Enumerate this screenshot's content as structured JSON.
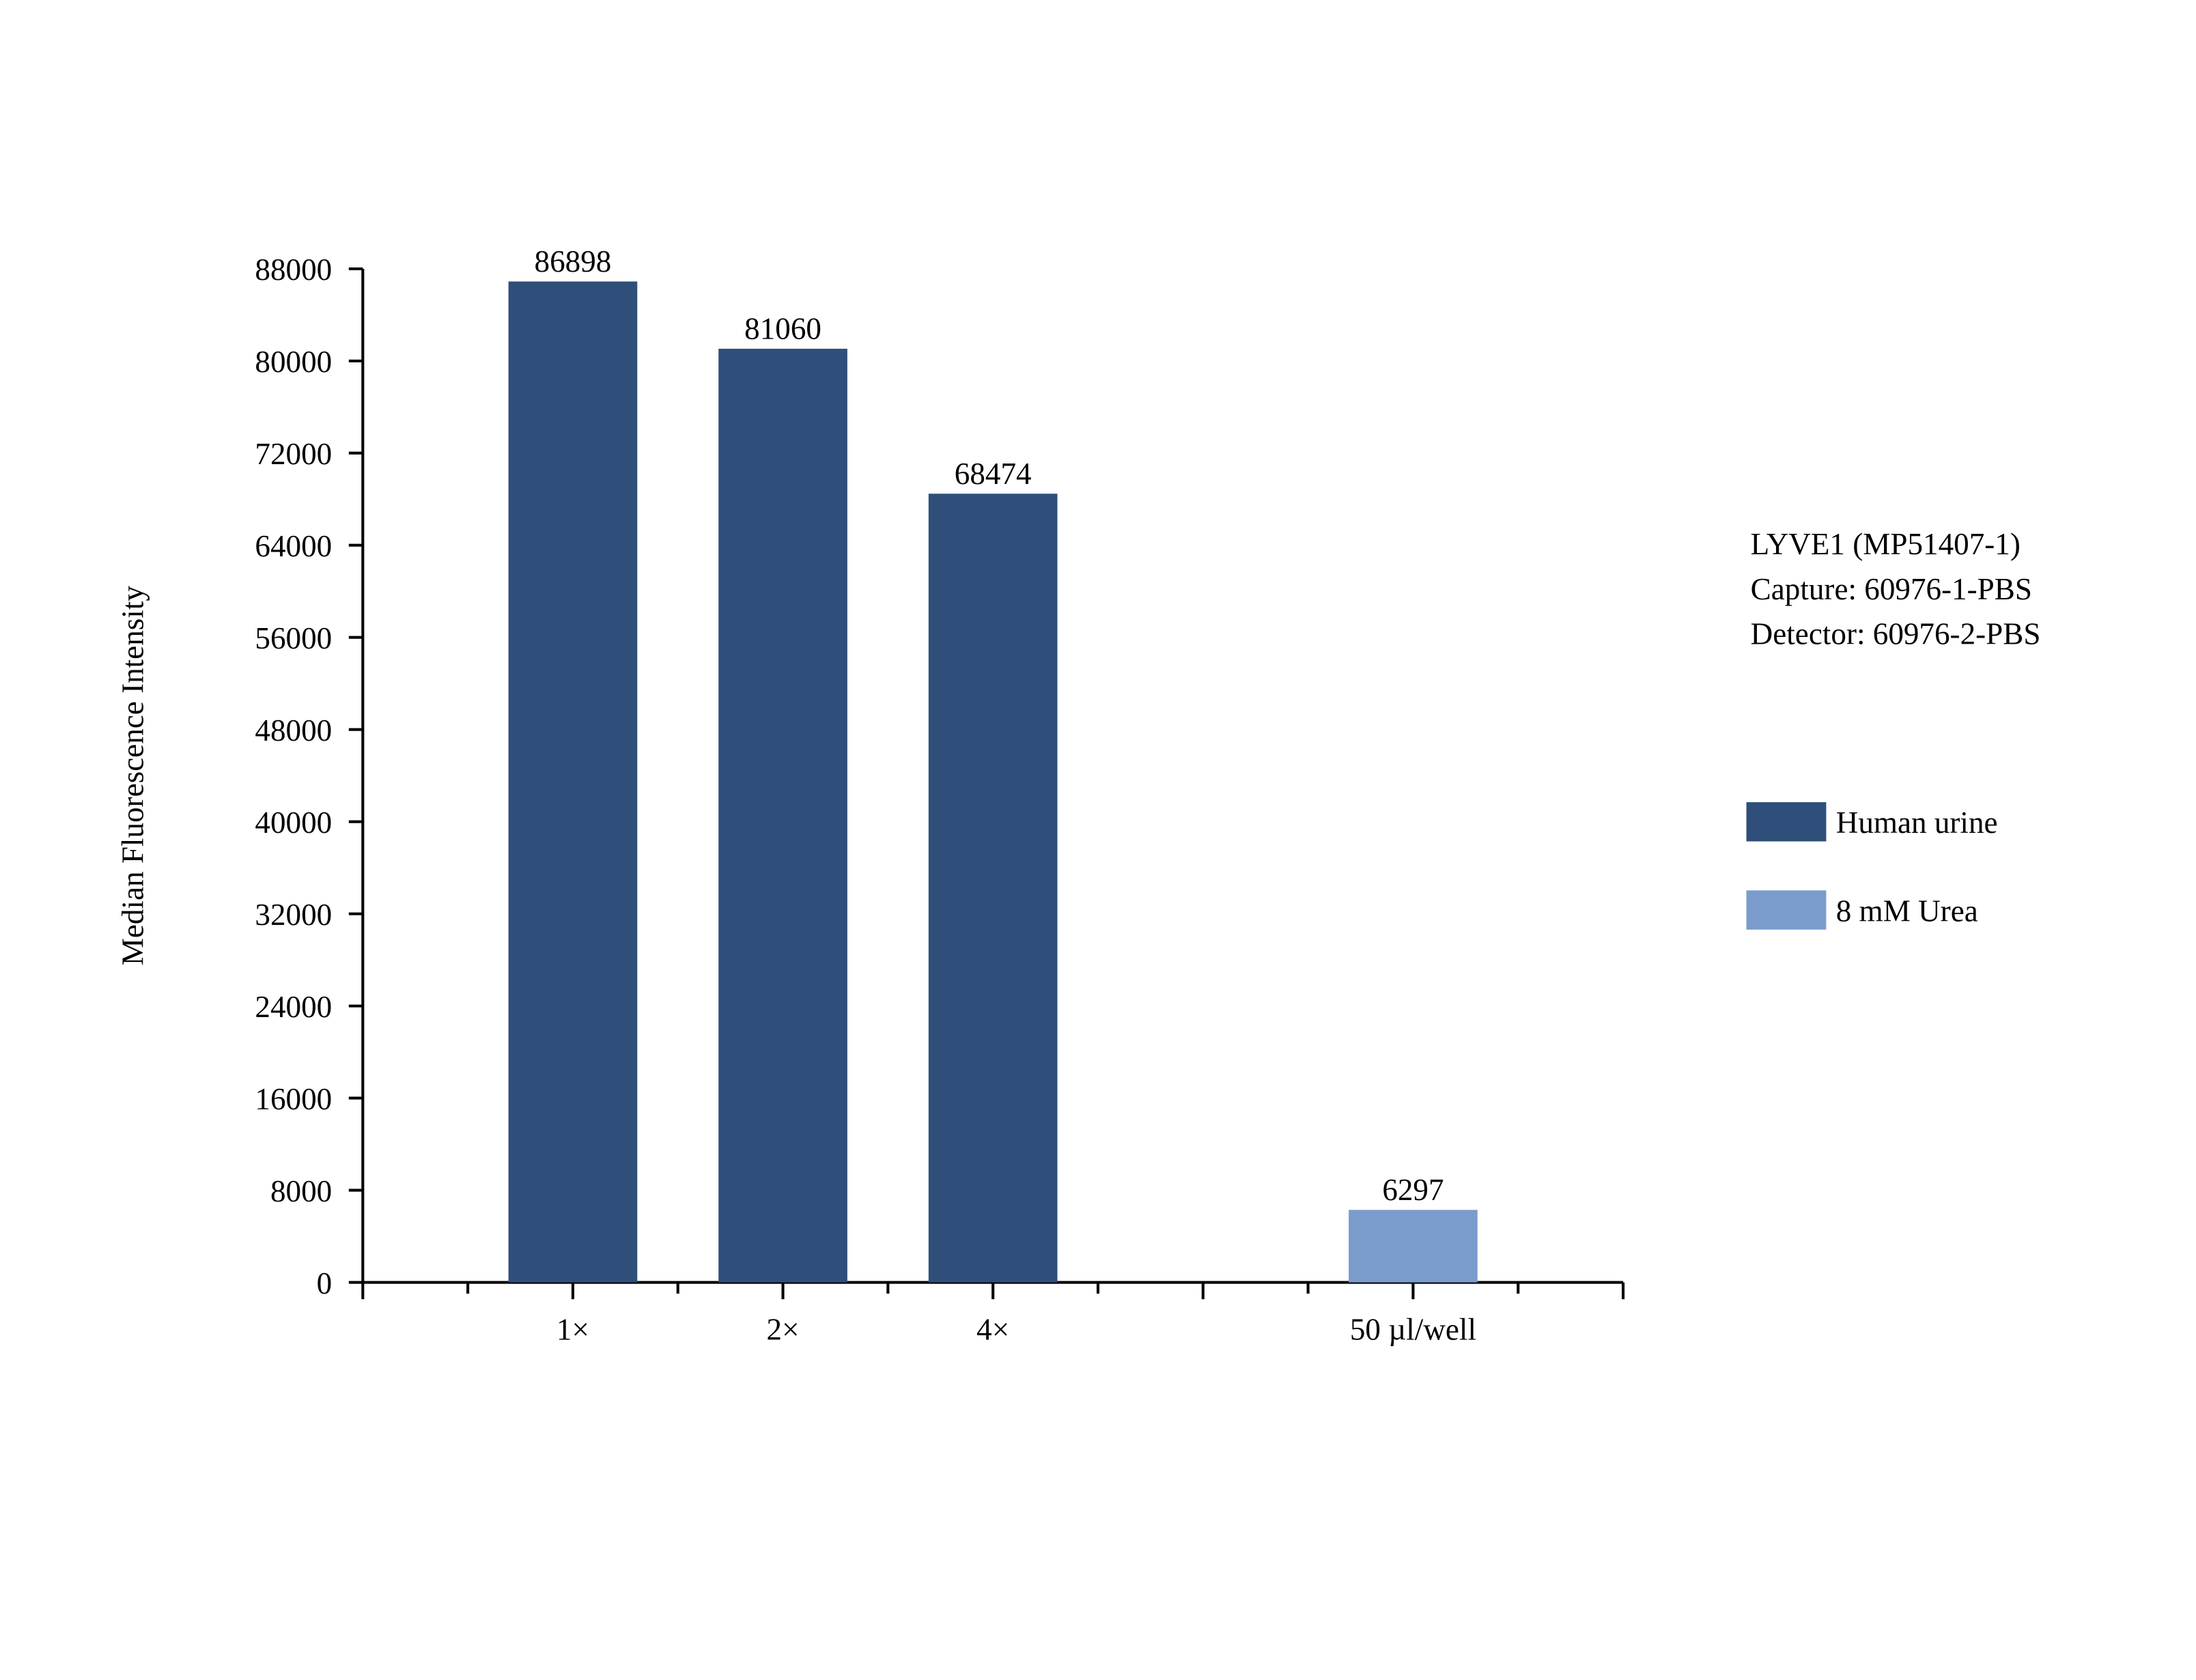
{
  "chart_data": {
    "type": "bar",
    "y_label": "Median Fluorescence Intensity",
    "annotation": [
      "LYVE1 (MP51407-1)",
      "Capture: 60976-1-PBS",
      "Detector: 60976-2-PBS"
    ],
    "categories": [
      "1×",
      "2×",
      "4×",
      null,
      "50 µl/well"
    ],
    "series": [
      {
        "name": "Human urine",
        "color": "#2f4f7a",
        "values": [
          86898,
          81060,
          68474,
          null,
          null
        ]
      },
      {
        "name": "8 mM Urea",
        "color": "#7b9ccc",
        "values": [
          null,
          null,
          null,
          null,
          6297
        ]
      }
    ],
    "ylim": [
      0,
      88000
    ],
    "yticks": [
      0,
      8000,
      16000,
      24000,
      32000,
      40000,
      48000,
      56000,
      64000,
      72000,
      80000,
      88000
    ],
    "grid": false
  }
}
